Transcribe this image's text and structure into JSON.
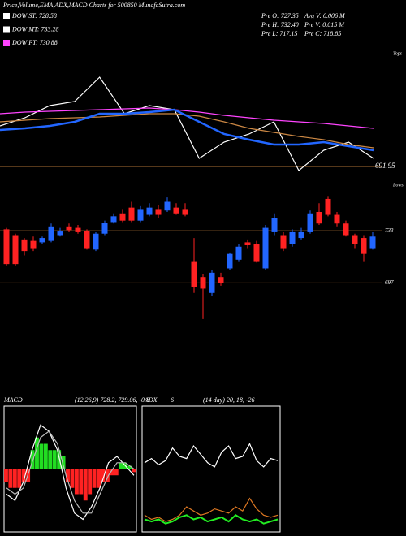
{
  "header": {
    "title": "Price,Volume,EMA,ADX,MACD Charts for 500850 MunafaSutra.com",
    "legend": [
      {
        "label": "DOW ST: 728.58",
        "color": "#ffffff"
      },
      {
        "label": "DOW MT: 733.28",
        "color": "#ffffff"
      },
      {
        "label": "DOW PT: 730.88",
        "color": "#ff44ff"
      }
    ],
    "stats": [
      "Pre  O: 727.35",
      "Avg V: 0.006  M",
      "Pre  H: 732.40",
      "Pre  V: 0.015  M",
      "Pre  L: 717.15",
      "Pre  C: 718.85"
    ],
    "tops": "Tops",
    "lows": "Lows"
  },
  "chart_data": [
    {
      "type": "line",
      "ylim": [
        690,
        770
      ],
      "yticks": [
        691.95
      ],
      "series": [
        {
          "color": "#ffffff",
          "values": [
            712,
            716,
            722,
            724,
            736,
            718,
            722,
            720,
            696,
            704,
            708,
            714,
            690,
            700,
            704,
            696
          ]
        },
        {
          "color": "#cc8844",
          "values": [
            714,
            714.8,
            715.6,
            716,
            716.4,
            717.2,
            718,
            718,
            716.8,
            714,
            710.8,
            708.8,
            706.8,
            705.2,
            702.8,
            701.2
          ]
        },
        {
          "color": "#ff44ff",
          "values": [
            718,
            718.8,
            719.2,
            719.6,
            720,
            720.4,
            720.8,
            720,
            718.8,
            717.2,
            716,
            714.8,
            714,
            713.2,
            712,
            710.8
          ]
        },
        {
          "color": "#2266ff",
          "values": [
            710,
            710.8,
            712,
            714,
            718,
            718,
            718.8,
            720,
            714,
            708,
            705.2,
            702.8,
            702.8,
            704,
            702,
            700
          ]
        }
      ]
    },
    {
      "type": "candlestick",
      "ylim": [
        668,
        769
      ],
      "yticks": [
        733,
        697
      ],
      "up_color": "#2266ff",
      "down_color": "#ff2222",
      "open": [
        734,
        730,
        727,
        726,
        725,
        726,
        730,
        736,
        735,
        733,
        720,
        731,
        739,
        745,
        749,
        740,
        744,
        748,
        747,
        749,
        748,
        712,
        701,
        690,
        701,
        707,
        713,
        725,
        724,
        707,
        732,
        730,
        724,
        728,
        732,
        746,
        755,
        744,
        738,
        730,
        728,
        721
      ],
      "high": [
        735,
        731,
        728,
        729,
        729,
        738,
        735,
        738,
        737,
        734,
        732,
        740,
        745,
        748,
        753,
        750,
        752,
        751,
        756,
        752,
        752,
        728,
        703,
        706,
        704,
        718,
        724,
        727,
        726,
        737,
        745,
        732,
        734,
        735,
        747,
        752,
        757,
        746,
        740,
        731,
        730,
        732
      ],
      "low": [
        709,
        709,
        716,
        719,
        724,
        725,
        729,
        732,
        731,
        720,
        719,
        730,
        738,
        739,
        739,
        739,
        743,
        742,
        746,
        744,
        743,
        690,
        672,
        688,
        695,
        706,
        712,
        721,
        711,
        706,
        730,
        719,
        722,
        727,
        731,
        737,
        743,
        736,
        729,
        721,
        712,
        720
      ],
      "close": [
        710,
        710,
        719,
        721,
        728,
        736,
        732.5,
        733.5,
        732,
        721,
        731,
        738.5,
        743,
        740,
        740,
        748,
        749,
        744,
        753,
        745,
        744,
        694,
        693,
        704,
        697,
        717,
        722,
        723,
        712,
        735,
        742,
        721,
        732,
        732,
        745,
        738,
        744,
        738,
        730,
        724,
        717,
        729
      ]
    },
    {
      "type": "macd",
      "title": "MACD",
      "params": "(12,26,9) 728.2, 729.06, -0.8",
      "ylim": [
        -10,
        10
      ],
      "histogram": [
        -2,
        -3,
        -3,
        -3,
        -2,
        -2,
        3,
        5,
        4,
        4,
        3,
        3,
        3,
        2,
        -2,
        -3,
        -4,
        -4,
        -5,
        -4,
        -3,
        -3,
        -2,
        -2,
        -1,
        -1,
        1,
        1,
        0.5,
        -0.5
      ],
      "pos_color": "#22dd22",
      "neg_color": "#ff2222",
      "series": [
        {
          "color": "#ffffff",
          "values": [
            -4,
            -5,
            -2,
            3,
            7,
            6,
            3,
            -3,
            -7,
            -8,
            -6,
            -3,
            1,
            2,
            0.5,
            -1
          ]
        },
        {
          "color": "#bbbbbb",
          "values": [
            -3,
            -4,
            -3,
            1,
            5,
            6,
            4,
            -1,
            -5,
            -7,
            -7,
            -4,
            -1,
            1,
            1,
            0
          ]
        }
      ]
    },
    {
      "type": "adx",
      "title": "ADX",
      "value": "6",
      "params": "(14 day) 20, 18, -26",
      "ylim": [
        0,
        60
      ],
      "series": [
        {
          "color": "#ffffff",
          "values": [
            33,
            35,
            32,
            34,
            40,
            36,
            35,
            41,
            37,
            33,
            31,
            38,
            41,
            35,
            36,
            42,
            34,
            31,
            35,
            34
          ]
        },
        {
          "color": "#dd7722",
          "values": [
            8,
            6,
            7,
            5,
            6,
            8,
            12,
            10,
            8,
            9,
            11,
            10,
            9,
            12,
            10,
            16,
            11,
            8,
            7,
            8
          ]
        },
        {
          "color": "#22ee22",
          "values": [
            6,
            5,
            6,
            4,
            5,
            7,
            8,
            6,
            7,
            5,
            6,
            7,
            5,
            8,
            6,
            5,
            6,
            4,
            5,
            6
          ]
        }
      ]
    }
  ]
}
